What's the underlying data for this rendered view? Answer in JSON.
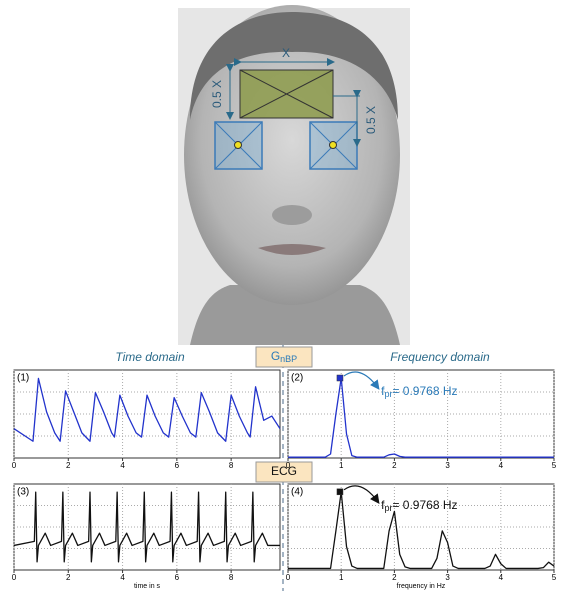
{
  "face": {
    "width_label": "X",
    "height_label": "0.5 X",
    "offset_label": "0.5 X"
  },
  "headers": {
    "time": "Time domain",
    "frequency": "Frequency domain",
    "signal1": {
      "text": "G",
      "subscript": "nBP"
    },
    "signal2": "ECG"
  },
  "chart_data": [
    {
      "type": "line",
      "label": "(1)",
      "color": "#2233cc",
      "xlim": [
        0,
        9.8
      ],
      "xticks": [
        0,
        2,
        4,
        6,
        8
      ],
      "ylim": [
        0,
        1.05
      ],
      "grid": true,
      "x": [
        0,
        0.7,
        0.9,
        1.2,
        1.5,
        1.7,
        1.9,
        2.2,
        2.5,
        2.8,
        3.0,
        3.3,
        3.6,
        3.7,
        3.9,
        4.2,
        4.5,
        4.7,
        4.9,
        5.2,
        5.5,
        5.7,
        5.9,
        6.2,
        6.5,
        6.7,
        6.9,
        7.2,
        7.5,
        7.8,
        8.0,
        8.3,
        8.6,
        8.7,
        8.9,
        9.2,
        9.5,
        9.8
      ],
      "values": [
        0.35,
        0.2,
        0.95,
        0.55,
        0.3,
        0.2,
        0.8,
        0.55,
        0.3,
        0.2,
        0.78,
        0.55,
        0.3,
        0.25,
        0.75,
        0.5,
        0.3,
        0.25,
        0.75,
        0.5,
        0.3,
        0.25,
        0.72,
        0.5,
        0.3,
        0.25,
        0.78,
        0.55,
        0.3,
        0.2,
        0.75,
        0.5,
        0.3,
        0.25,
        0.85,
        0.45,
        0.5,
        0.35
      ]
    },
    {
      "type": "line",
      "label": "(2)",
      "color": "#2233cc",
      "xlim": [
        0,
        5
      ],
      "xticks": [
        0,
        1,
        2,
        3,
        4,
        5
      ],
      "ylim": [
        0,
        1.1
      ],
      "grid": true,
      "x": [
        0,
        0.1,
        0.2,
        0.3,
        0.4,
        0.5,
        0.6,
        0.7,
        0.8,
        0.9,
        1,
        1.1,
        1.2,
        1.3,
        1.4,
        1.5,
        1.6,
        1.7,
        1.8,
        1.9,
        2,
        2.1,
        2.2,
        2.3,
        2.4,
        2.5,
        2.6,
        2.7,
        2.8,
        2.9,
        3,
        3.1,
        3.2,
        3.3,
        3.4,
        3.5,
        3.6,
        3.7,
        3.8,
        3.9,
        4,
        4.1,
        4.2,
        4.3,
        4.4,
        4.5,
        4.6,
        4.7,
        4.8,
        4.9,
        5
      ],
      "values": [
        0.01,
        0.01,
        0.01,
        0.01,
        0.01,
        0.01,
        0.01,
        0.01,
        0.05,
        0.55,
        1,
        0.3,
        0.03,
        0.01,
        0.01,
        0.01,
        0.01,
        0.01,
        0.01,
        0.04,
        0.05,
        0.02,
        0.01,
        0.01,
        0.01,
        0.01,
        0.01,
        0.01,
        0.01,
        0.01,
        0.01,
        0.01,
        0.01,
        0.01,
        0.01,
        0.01,
        0.01,
        0.01,
        0.01,
        0.01,
        0.01,
        0.01,
        0.01,
        0.01,
        0.01,
        0.01,
        0.01,
        0.01,
        0.01,
        0.01,
        0.01
      ],
      "marker": {
        "x": 0.9768,
        "y": 1
      },
      "annotation": {
        "symbol": "f",
        "subscript": "pr",
        "text": "= 0.9768 Hz",
        "color": "#2a7ab8"
      }
    },
    {
      "type": "line",
      "label": "(3)",
      "color": "#111111",
      "xlim": [
        0,
        9.8
      ],
      "xticks": [
        0,
        2,
        4,
        6,
        8
      ],
      "ylim": [
        0,
        1.05
      ],
      "grid": true,
      "xlabel": "time in s",
      "x": [
        0,
        0.75,
        0.8,
        0.85,
        0.9,
        1.15,
        1.35,
        1.75,
        1.8,
        1.85,
        1.9,
        2.15,
        2.35,
        2.75,
        2.8,
        2.85,
        2.9,
        3.15,
        3.35,
        3.75,
        3.8,
        3.85,
        3.9,
        4.15,
        4.35,
        4.75,
        4.8,
        4.85,
        4.9,
        5.15,
        5.35,
        5.75,
        5.8,
        5.85,
        5.9,
        6.15,
        6.35,
        6.75,
        6.8,
        6.85,
        6.9,
        7.15,
        7.35,
        7.75,
        7.8,
        7.85,
        7.9,
        8.15,
        8.35,
        8.75,
        8.8,
        8.85,
        8.9,
        9.15,
        9.35,
        9.8
      ],
      "values": [
        0.3,
        0.35,
        0.95,
        0.1,
        0.3,
        0.45,
        0.3,
        0.35,
        0.95,
        0.1,
        0.3,
        0.45,
        0.3,
        0.35,
        0.95,
        0.1,
        0.3,
        0.45,
        0.3,
        0.35,
        0.95,
        0.1,
        0.3,
        0.45,
        0.3,
        0.35,
        0.95,
        0.1,
        0.3,
        0.45,
        0.3,
        0.35,
        0.95,
        0.1,
        0.3,
        0.45,
        0.3,
        0.35,
        0.95,
        0.1,
        0.3,
        0.45,
        0.3,
        0.35,
        0.95,
        0.1,
        0.3,
        0.45,
        0.3,
        0.35,
        0.95,
        0.1,
        0.3,
        0.45,
        0.3,
        0.3
      ]
    },
    {
      "type": "line",
      "label": "(4)",
      "color": "#111111",
      "xlim": [
        0,
        5
      ],
      "xticks": [
        0,
        1,
        2,
        3,
        4,
        5
      ],
      "ylim": [
        0,
        1.1
      ],
      "grid": true,
      "xlabel": "frequency in Hz",
      "x": [
        0,
        0.1,
        0.2,
        0.3,
        0.4,
        0.5,
        0.6,
        0.7,
        0.8,
        0.9,
        1,
        1.1,
        1.2,
        1.3,
        1.4,
        1.5,
        1.6,
        1.7,
        1.8,
        1.9,
        2,
        2.1,
        2.2,
        2.3,
        2.4,
        2.5,
        2.6,
        2.7,
        2.8,
        2.9,
        3,
        3.1,
        3.2,
        3.3,
        3.4,
        3.5,
        3.6,
        3.7,
        3.8,
        3.9,
        4,
        4.1,
        4.2,
        4.3,
        4.4,
        4.5,
        4.6,
        4.7,
        4.8,
        4.9,
        5
      ],
      "values": [
        0.02,
        0.02,
        0.02,
        0.02,
        0.02,
        0.02,
        0.02,
        0.02,
        0.02,
        0.5,
        1,
        0.3,
        0.05,
        0.02,
        0.02,
        0.02,
        0.02,
        0.02,
        0.02,
        0.5,
        0.75,
        0.2,
        0.04,
        0.02,
        0.02,
        0.02,
        0.02,
        0.02,
        0.15,
        0.5,
        0.35,
        0.05,
        0.02,
        0.02,
        0.02,
        0.02,
        0.02,
        0.02,
        0.05,
        0.2,
        0.08,
        0.02,
        0.02,
        0.02,
        0.02,
        0.02,
        0.02,
        0.02,
        0.03,
        0.1,
        0.05
      ],
      "marker": {
        "x": 0.9768,
        "y": 1
      },
      "annotation": {
        "symbol": "f",
        "subscript": "pr",
        "text": "= 0.9768 Hz",
        "color": "#111111"
      }
    }
  ]
}
